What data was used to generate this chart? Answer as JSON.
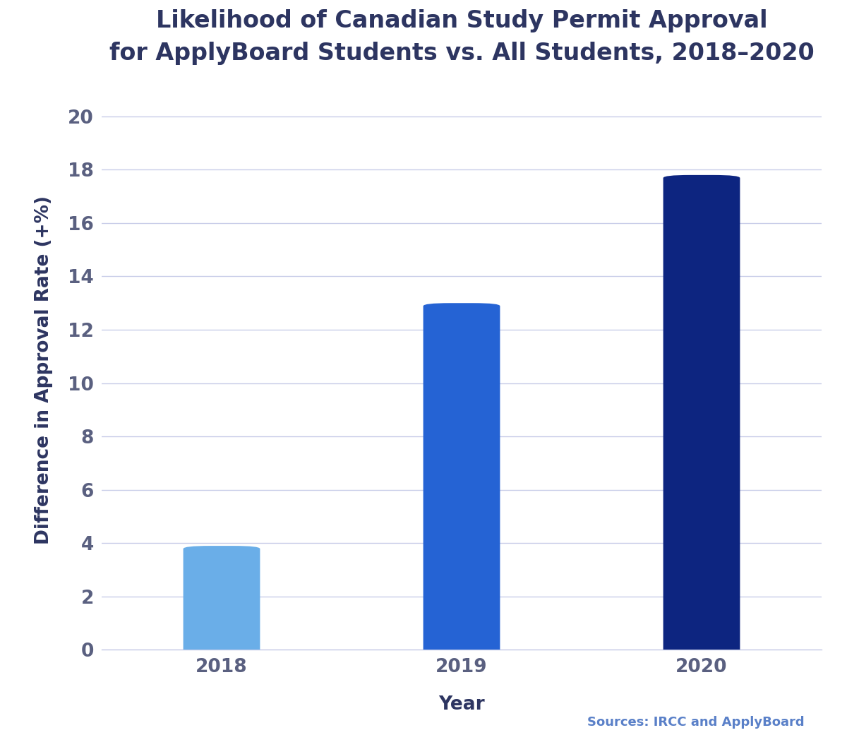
{
  "title": "Likelihood of Canadian Study Permit Approval\nfor ApplyBoard Students vs. All Students, 2018–2020",
  "categories": [
    "2018",
    "2019",
    "2020"
  ],
  "values": [
    3.9,
    13.0,
    17.8
  ],
  "bar_colors": [
    "#6aaee8",
    "#2563d4",
    "#0d2580"
  ],
  "xlabel": "Year",
  "ylabel": "Difference in Approval Rate (+%)",
  "ylim": [
    0,
    21
  ],
  "yticks": [
    0,
    2,
    4,
    6,
    8,
    10,
    12,
    14,
    16,
    18,
    20
  ],
  "title_fontsize": 24,
  "axis_label_fontsize": 19,
  "tick_fontsize": 19,
  "source_text": "Sources: IRCC and ApplyBoard",
  "source_fontsize": 13,
  "title_color": "#2d3561",
  "tick_color": "#5a6080",
  "axis_label_color": "#2d3561",
  "source_color": "#5a80c8",
  "background_color": "#ffffff",
  "grid_color": "#c8cce8",
  "bar_width": 0.32
}
